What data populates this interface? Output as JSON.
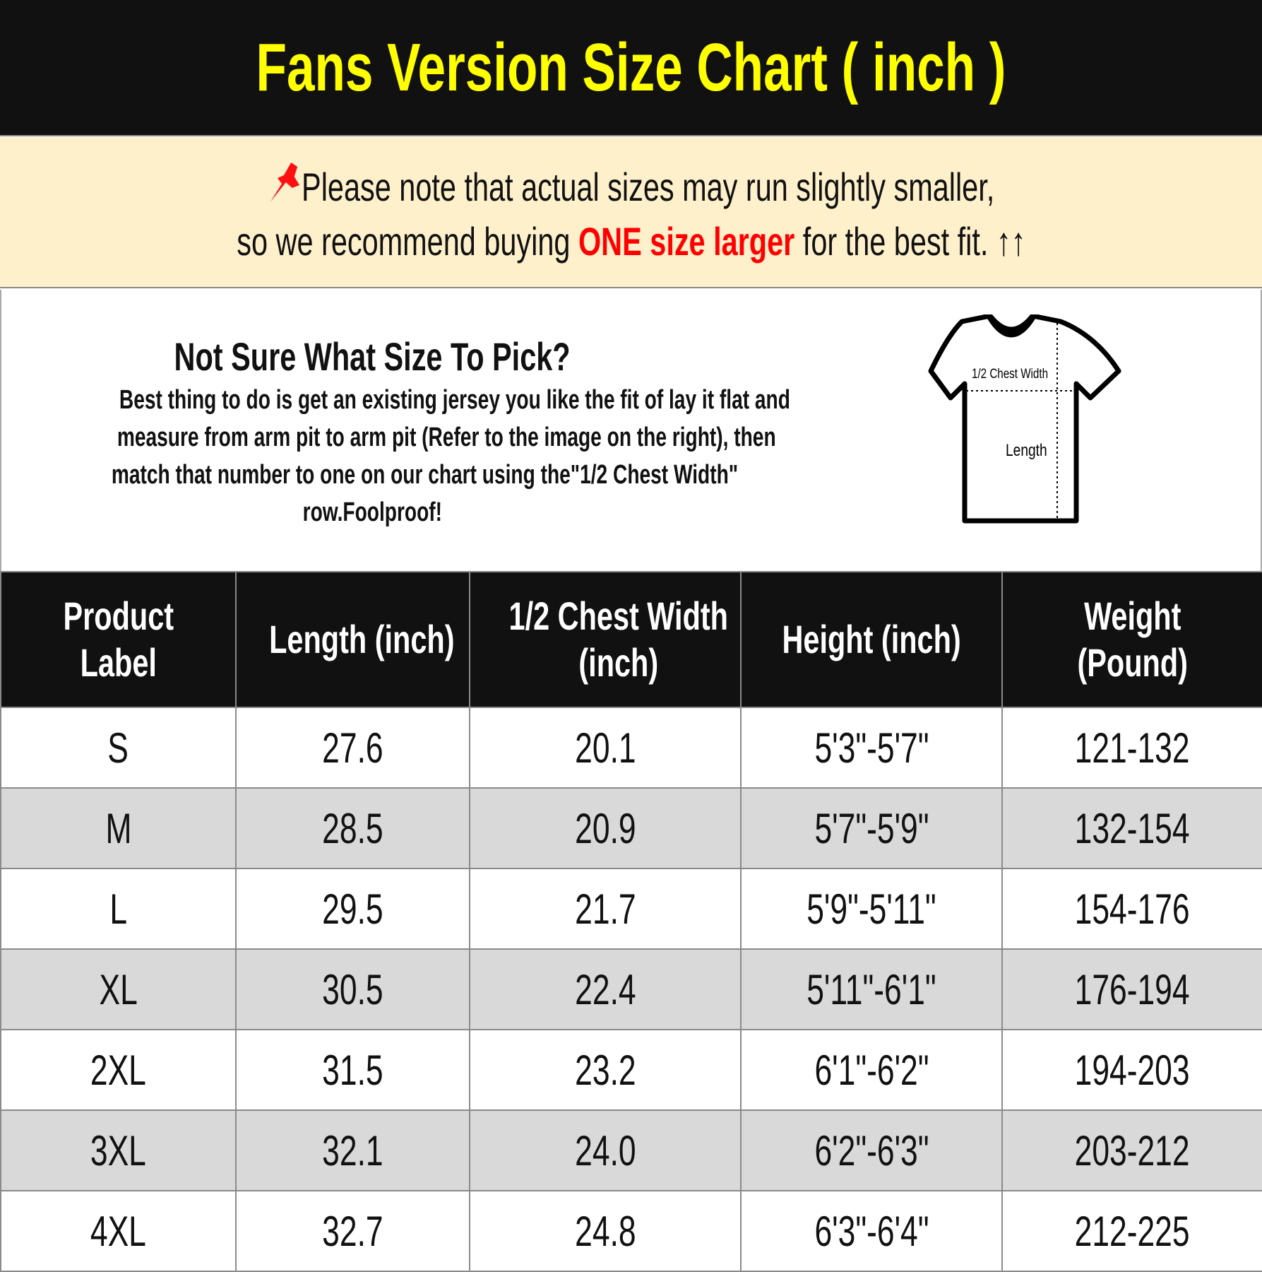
{
  "title": "Fans Version Size Chart ( inch )",
  "notice": {
    "icon": "pushpin-icon",
    "line1": "Please note that actual sizes may run slightly smaller,",
    "line2_before": "so we recommend buying ",
    "line2_highlight": "ONE size larger",
    "line2_after": " for the best fit. ↑↑",
    "highlight_color": "#ff0000"
  },
  "info": {
    "heading": "Not Sure What Size To Pick?",
    "description_lines": [
      "Best thing to do is get an existing jersey you like the fit of lay it flat and",
      "measure from arm pit to arm pit (Refer to the image on the right), then",
      "match that number to one on our chart using the\"1/2 Chest Width\"",
      "row.Foolproof!"
    ],
    "diagram": {
      "chest_label": "1/2 Chest Width",
      "length_label": "Length"
    }
  },
  "table": {
    "headers": [
      [
        "Product",
        "Label"
      ],
      [
        "Length (inch)"
      ],
      [
        "1/2 Chest Width",
        "(inch)"
      ],
      [
        "Height (inch)"
      ],
      [
        "Weight",
        "(Pound)"
      ]
    ],
    "rows": [
      [
        "S",
        "27.6",
        "20.1",
        "5'3\"-5'7\"",
        "121-132"
      ],
      [
        "M",
        "28.5",
        "20.9",
        "5'7\"-5'9\"",
        "132-154"
      ],
      [
        "L",
        "29.5",
        "21.7",
        "5'9\"-5'11\"",
        "154-176"
      ],
      [
        "XL",
        "30.5",
        "22.4",
        "5'11\"-6'1\"",
        "176-194"
      ],
      [
        "2XL",
        "31.5",
        "23.2",
        "6'1\"-6'2\"",
        "194-203"
      ],
      [
        "3XL",
        "32.1",
        "24.0",
        "6'2\"-6'3\"",
        "203-212"
      ],
      [
        "4XL",
        "32.7",
        "24.8",
        "6'3\"-6'4\"",
        "212-225"
      ]
    ]
  }
}
